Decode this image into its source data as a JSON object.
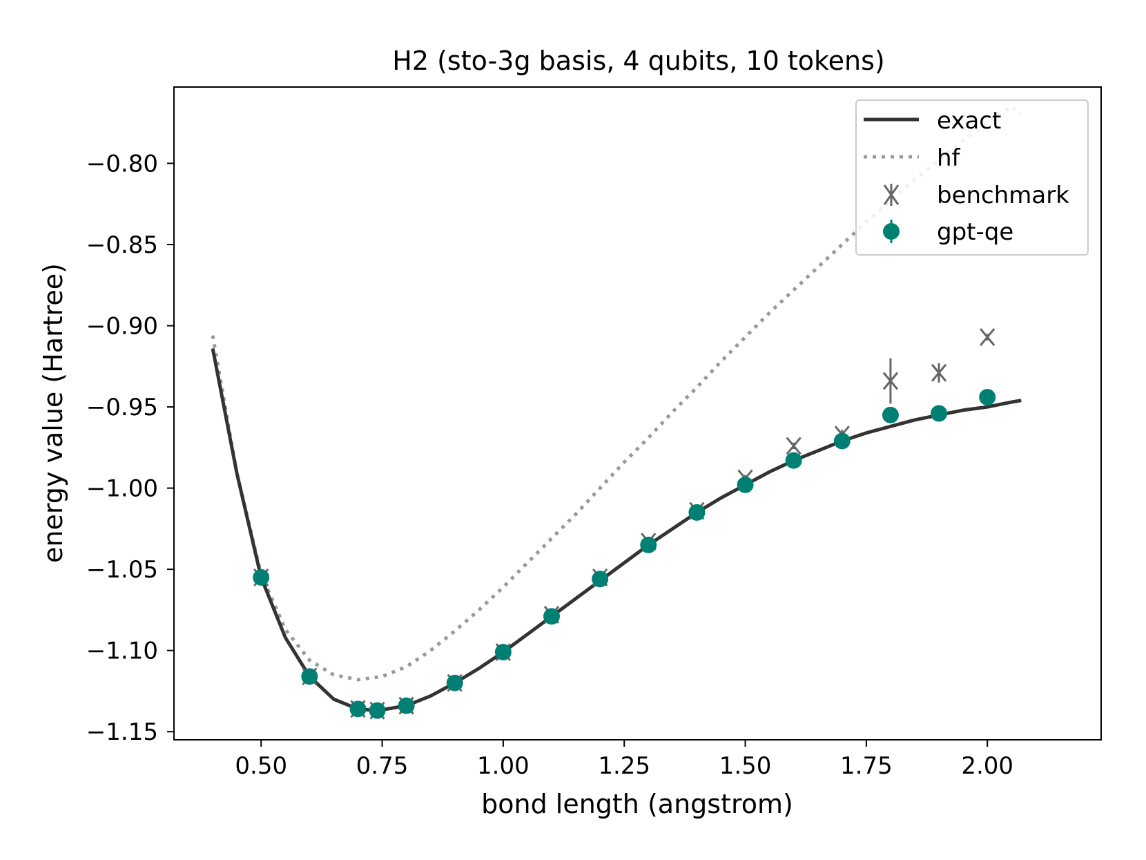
{
  "chart_data": {
    "type": "line",
    "title": "H2 (sto-3g basis, 4 qubits, 10 tokens)",
    "xlabel": "bond length (angstrom)",
    "ylabel": "energy value (Hartree)",
    "xlim": [
      0.32,
      2.235
    ],
    "ylim": [
      -1.155,
      -0.753
    ],
    "xticks": [
      0.5,
      0.75,
      1.0,
      1.25,
      1.5,
      1.75,
      2.0
    ],
    "xtick_labels": [
      "0.50",
      "0.75",
      "1.00",
      "1.25",
      "1.50",
      "1.75",
      "2.00"
    ],
    "yticks": [
      -0.8,
      -0.85,
      -0.9,
      -0.95,
      -1.0,
      -1.05,
      -1.1,
      -1.15
    ],
    "ytick_labels": [
      "−0.80",
      "−0.85",
      "−0.90",
      "−0.95",
      "−1.00",
      "−1.05",
      "−1.10",
      "−1.15"
    ],
    "legend_position": "top-right",
    "grid": false,
    "series": [
      {
        "name": "exact",
        "style": "solid-line",
        "color": "#333333",
        "x": [
          0.4,
          0.45,
          0.5,
          0.55,
          0.6,
          0.65,
          0.7,
          0.74,
          0.8,
          0.85,
          0.9,
          0.95,
          1.0,
          1.05,
          1.1,
          1.15,
          1.2,
          1.25,
          1.3,
          1.35,
          1.4,
          1.45,
          1.5,
          1.55,
          1.6,
          1.65,
          1.7,
          1.75,
          1.8,
          1.85,
          1.9,
          1.95,
          2.0,
          2.05,
          2.07
        ],
        "y": [
          -0.914,
          -0.991,
          -1.055,
          -1.092,
          -1.116,
          -1.13,
          -1.136,
          -1.137,
          -1.134,
          -1.128,
          -1.12,
          -1.111,
          -1.101,
          -1.09,
          -1.079,
          -1.068,
          -1.057,
          -1.046,
          -1.035,
          -1.025,
          -1.015,
          -1.006,
          -0.998,
          -0.99,
          -0.983,
          -0.977,
          -0.971,
          -0.966,
          -0.962,
          -0.958,
          -0.955,
          -0.952,
          -0.95,
          -0.947,
          -0.946
        ]
      },
      {
        "name": "hf",
        "style": "dotted-line",
        "color": "#999999",
        "x": [
          0.4,
          0.45,
          0.5,
          0.55,
          0.6,
          0.65,
          0.7,
          0.75,
          0.8,
          0.85,
          0.9,
          0.95,
          1.0,
          1.05,
          1.1,
          1.15,
          1.2,
          1.25,
          1.3,
          1.35,
          1.4,
          1.45,
          1.5,
          1.55,
          1.6,
          1.65,
          1.7,
          1.75,
          1.8,
          1.85,
          1.9,
          1.95,
          2.0,
          2.05,
          2.07
        ],
        "y": [
          -0.906,
          -0.991,
          -1.053,
          -1.087,
          -1.106,
          -1.115,
          -1.118,
          -1.116,
          -1.11,
          -1.1,
          -1.088,
          -1.075,
          -1.061,
          -1.046,
          -1.031,
          -1.016,
          -1.0,
          -0.984,
          -0.969,
          -0.953,
          -0.938,
          -0.922,
          -0.907,
          -0.892,
          -0.878,
          -0.864,
          -0.85,
          -0.836,
          -0.823,
          -0.81,
          -0.798,
          -0.786,
          -0.775,
          -0.765,
          -0.77
        ]
      },
      {
        "name": "benchmark",
        "style": "x-marker-errorbar",
        "color": "#666666",
        "x": [
          0.5,
          0.6,
          0.7,
          0.74,
          0.8,
          0.9,
          1.0,
          1.1,
          1.2,
          1.3,
          1.4,
          1.5,
          1.6,
          1.7,
          1.8,
          1.9,
          2.0
        ],
        "y": [
          -1.055,
          -1.116,
          -1.136,
          -1.137,
          -1.134,
          -1.12,
          -1.101,
          -1.078,
          -1.055,
          -1.033,
          -1.014,
          -0.994,
          -0.974,
          -0.967,
          -0.934,
          -0.929,
          -0.907
        ],
        "yerr": [
          0.002,
          0.002,
          0.002,
          0.002,
          0.002,
          0.002,
          0.002,
          0.002,
          0.002,
          0.002,
          0.002,
          0.002,
          0.002,
          0.003,
          0.014,
          0.006,
          0.002
        ]
      },
      {
        "name": "gpt-qe",
        "style": "circle-marker-errorbar",
        "color": "#008073",
        "x": [
          0.5,
          0.6,
          0.7,
          0.74,
          0.8,
          0.9,
          1.0,
          1.1,
          1.2,
          1.3,
          1.4,
          1.5,
          1.6,
          1.7,
          1.8,
          1.9,
          2.0
        ],
        "y": [
          -1.055,
          -1.116,
          -1.136,
          -1.137,
          -1.134,
          -1.12,
          -1.101,
          -1.079,
          -1.056,
          -1.035,
          -1.015,
          -0.998,
          -0.983,
          -0.971,
          -0.955,
          -0.954,
          -0.944
        ],
        "yerr": [
          0.001,
          0.001,
          0.001,
          0.001,
          0.001,
          0.001,
          0.001,
          0.001,
          0.001,
          0.001,
          0.001,
          0.001,
          0.001,
          0.001,
          0.001,
          0.001,
          0.001
        ]
      }
    ]
  }
}
